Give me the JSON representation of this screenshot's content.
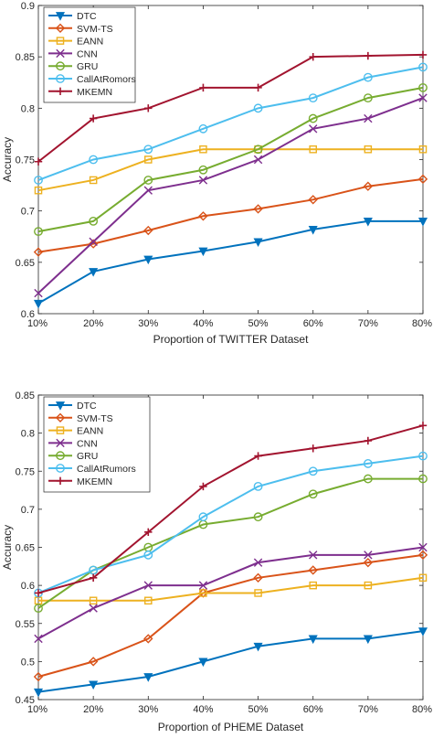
{
  "chart_data": [
    {
      "type": "line",
      "title": "",
      "xlabel": "Proportion of TWITTER Dataset",
      "ylabel": "Accuracy",
      "categories": [
        "10%",
        "20%",
        "30%",
        "40%",
        "50%",
        "60%",
        "70%",
        "80%"
      ],
      "ylim": [
        0.6,
        0.9
      ],
      "yticks": [
        "0.6",
        "0.65",
        "0.7",
        "0.75",
        "0.8",
        "0.85",
        "0.9"
      ],
      "grid": false,
      "legend_position": "top-left",
      "series": [
        {
          "name": "DTC",
          "color": "#0072BD",
          "marker": "triangle-down",
          "values": [
            0.61,
            0.641,
            0.653,
            0.661,
            0.67,
            0.682,
            0.69,
            0.69
          ]
        },
        {
          "name": "SVM-TS",
          "color": "#D95319",
          "marker": "diamond",
          "values": [
            0.66,
            0.668,
            0.681,
            0.695,
            0.702,
            0.711,
            0.724,
            0.731
          ]
        },
        {
          "name": "EANN",
          "color": "#EDB120",
          "marker": "square",
          "values": [
            0.72,
            0.73,
            0.75,
            0.76,
            0.76,
            0.76,
            0.76,
            0.76
          ]
        },
        {
          "name": "CNN",
          "color": "#7E2F8E",
          "marker": "x",
          "values": [
            0.62,
            0.67,
            0.72,
            0.73,
            0.75,
            0.78,
            0.79,
            0.81
          ]
        },
        {
          "name": "GRU",
          "color": "#77AC30",
          "marker": "circle",
          "values": [
            0.68,
            0.69,
            0.73,
            0.74,
            0.76,
            0.79,
            0.81,
            0.82
          ]
        },
        {
          "name": "CallAtRomors",
          "color": "#4DBEEE",
          "marker": "circle",
          "values": [
            0.73,
            0.75,
            0.76,
            0.78,
            0.8,
            0.81,
            0.83,
            0.84
          ]
        },
        {
          "name": "MKEMN",
          "color": "#A2142F",
          "marker": "plus",
          "values": [
            0.748,
            0.79,
            0.8,
            0.82,
            0.82,
            0.85,
            0.851,
            0.852
          ]
        }
      ]
    },
    {
      "type": "line",
      "title": "",
      "xlabel": "Proportion of PHEME Dataset",
      "ylabel": "Accuracy",
      "categories": [
        "10%",
        "20%",
        "30%",
        "40%",
        "50%",
        "60%",
        "70%",
        "80%"
      ],
      "ylim": [
        0.45,
        0.85
      ],
      "yticks": [
        "0.45",
        "0.5",
        "0.55",
        "0.6",
        "0.65",
        "0.7",
        "0.75",
        "0.8",
        "0.85"
      ],
      "grid": false,
      "legend_position": "top-left",
      "series": [
        {
          "name": "DTC",
          "color": "#0072BD",
          "marker": "triangle-down",
          "values": [
            0.46,
            0.47,
            0.48,
            0.5,
            0.52,
            0.53,
            0.53,
            0.54
          ]
        },
        {
          "name": "SVM-TS",
          "color": "#D95319",
          "marker": "diamond",
          "values": [
            0.48,
            0.5,
            0.53,
            0.59,
            0.61,
            0.62,
            0.63,
            0.64
          ]
        },
        {
          "name": "EANN",
          "color": "#EDB120",
          "marker": "square",
          "values": [
            0.58,
            0.58,
            0.58,
            0.59,
            0.59,
            0.6,
            0.6,
            0.61
          ]
        },
        {
          "name": "CNN",
          "color": "#7E2F8E",
          "marker": "x",
          "values": [
            0.53,
            0.57,
            0.6,
            0.6,
            0.63,
            0.64,
            0.64,
            0.65
          ]
        },
        {
          "name": "GRU",
          "color": "#77AC30",
          "marker": "circle",
          "values": [
            0.57,
            0.62,
            0.65,
            0.68,
            0.69,
            0.72,
            0.74,
            0.74
          ]
        },
        {
          "name": "CallAtRumors",
          "color": "#4DBEEE",
          "marker": "circle",
          "values": [
            0.59,
            0.62,
            0.64,
            0.69,
            0.73,
            0.75,
            0.76,
            0.77
          ]
        },
        {
          "name": "MKEMN",
          "color": "#A2142F",
          "marker": "plus",
          "values": [
            0.59,
            0.61,
            0.67,
            0.73,
            0.77,
            0.78,
            0.79,
            0.81
          ]
        }
      ]
    }
  ]
}
